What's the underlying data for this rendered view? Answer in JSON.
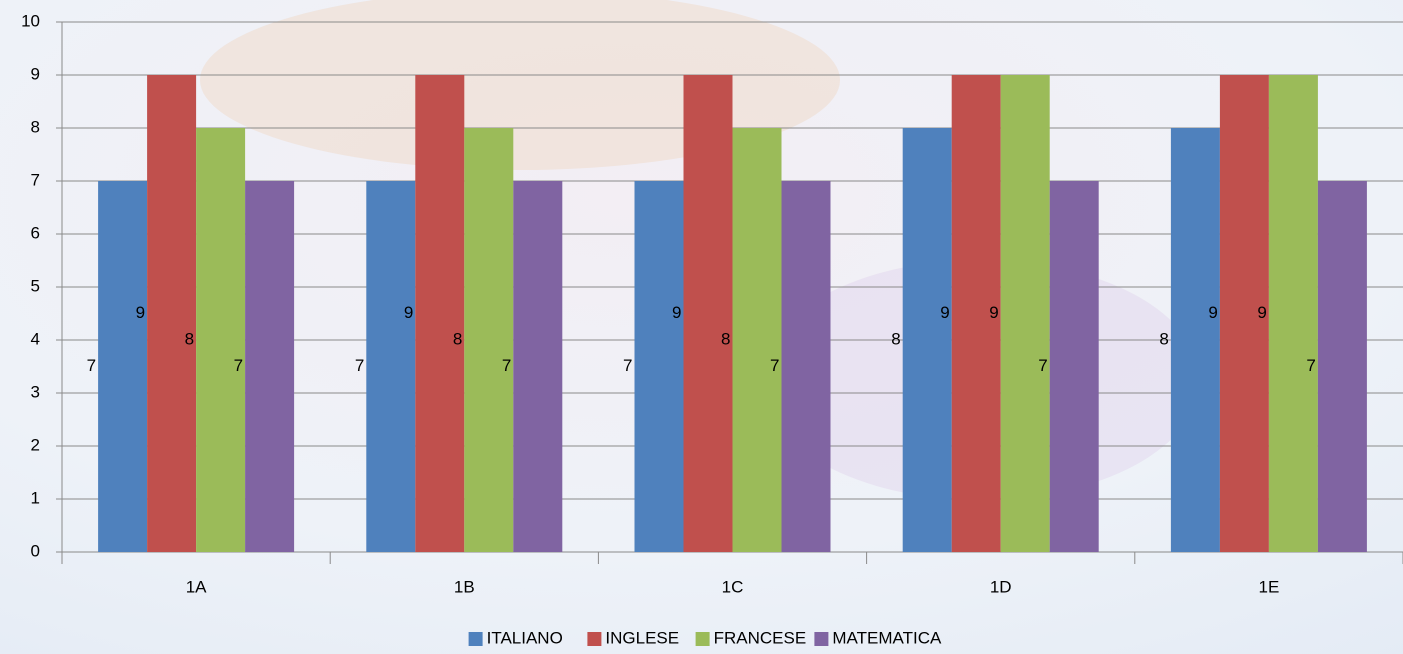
{
  "chart_data": {
    "type": "bar",
    "categories": [
      "1A",
      "1B",
      "1C",
      "1D",
      "1E"
    ],
    "series": [
      {
        "name": "ITALIANO",
        "color": "#4f81bd",
        "values": [
          7,
          7,
          7,
          8,
          8
        ]
      },
      {
        "name": "INGLESE",
        "color": "#c0504d",
        "values": [
          9,
          9,
          9,
          9,
          9
        ]
      },
      {
        "name": "FRANCESE",
        "color": "#9bbb59",
        "values": [
          8,
          8,
          8,
          9,
          9
        ]
      },
      {
        "name": "MATEMATICA",
        "color": "#8064a2",
        "values": [
          7,
          7,
          7,
          7,
          7
        ]
      }
    ],
    "ylim": [
      0,
      10
    ],
    "yticks": [
      0,
      1,
      2,
      3,
      4,
      5,
      6,
      7,
      8,
      9,
      10
    ],
    "grid": true,
    "data_labels": true,
    "legend": "bottom"
  }
}
